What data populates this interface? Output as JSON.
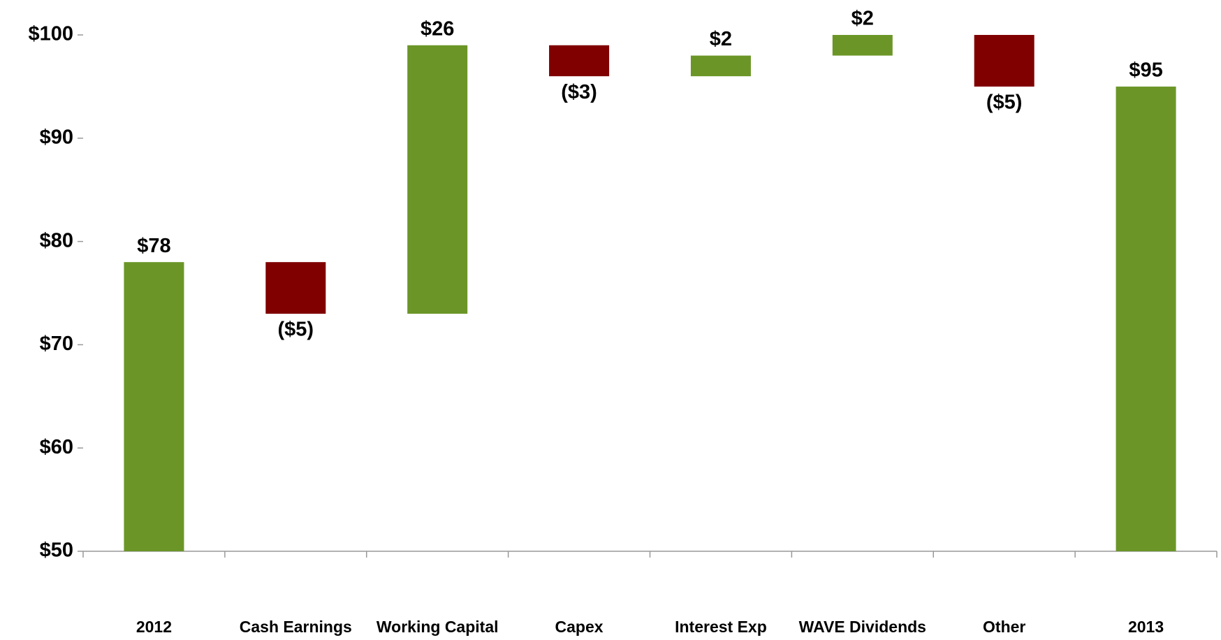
{
  "chart_data": {
    "type": "waterfall",
    "categories": [
      "2012",
      "Cash Earnings",
      "Working Capital",
      "Capex",
      "Interest Exp",
      "WAVE Dividends",
      "Other",
      "2013"
    ],
    "values": [
      78,
      -5,
      26,
      -3,
      2,
      2,
      -5,
      95
    ],
    "value_labels": [
      "$78",
      "($5)",
      "$26",
      "($3)",
      "$2",
      "$2",
      "($5)",
      "$95"
    ],
    "color": "#6b9627",
    "negative_color": "#800000",
    "ylim": [
      50,
      100
    ],
    "yticks": [
      {
        "value": 50,
        "label": "$50"
      },
      {
        "value": 60,
        "label": "$60"
      },
      {
        "value": 70,
        "label": "$70"
      },
      {
        "value": 80,
        "label": "$80"
      },
      {
        "value": 90,
        "label": "$90"
      },
      {
        "value": 100,
        "label": "$100"
      }
    ]
  }
}
